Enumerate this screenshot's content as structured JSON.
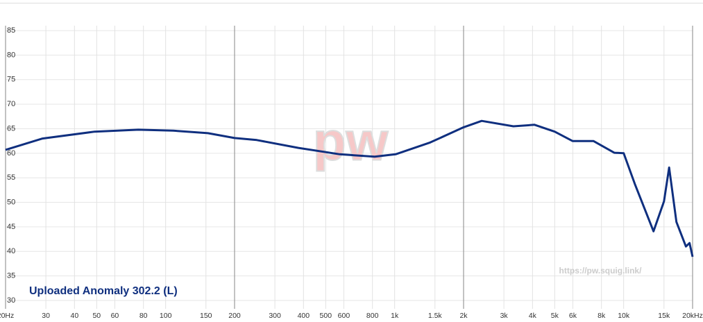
{
  "chart_data": {
    "type": "line",
    "xscale": "log",
    "logo": "pw",
    "watermark": "https://pw.squig.link/",
    "xlim": [
      20,
      20000
    ],
    "ylim": [
      28.3,
      86
    ],
    "xticks": [
      {
        "value": 20,
        "label": "20Hz"
      },
      30,
      40,
      50,
      60,
      80,
      100,
      150,
      200,
      300,
      400,
      500,
      600,
      800,
      {
        "value": 1000,
        "label": "1k"
      },
      {
        "value": 1500,
        "label": "1.5k"
      },
      {
        "value": 2000,
        "label": "2k"
      },
      {
        "value": 3000,
        "label": "3k"
      },
      {
        "value": 4000,
        "label": "4k"
      },
      {
        "value": 5000,
        "label": "5k"
      },
      {
        "value": 6000,
        "label": "6k"
      },
      {
        "value": 8000,
        "label": "8k"
      },
      {
        "value": 10000,
        "label": "10k"
      },
      {
        "value": 15000,
        "label": "15k"
      },
      {
        "value": 20000,
        "label": "20kHz"
      }
    ],
    "yticks": [
      30,
      35,
      40,
      45,
      50,
      55,
      60,
      65,
      70,
      75,
      80,
      85
    ],
    "grid": true,
    "series": [
      {
        "name": "Uploaded Anomaly 302.2 (L)",
        "color": "#0f2f7f",
        "x": [
          20,
          29,
          49,
          76,
          108,
          153,
          200,
          250,
          380,
          576,
          818,
          1010,
          1430,
          2000,
          2400,
          3300,
          4080,
          5000,
          5980,
          7380,
          9100,
          10000,
          11200,
          13500,
          15000,
          15800,
          17000,
          18700,
          19400,
          20000
        ],
        "values": [
          60.7,
          63,
          64.4,
          64.8,
          64.6,
          64.1,
          63.1,
          62.7,
          61.1,
          59.8,
          59.3,
          59.8,
          62.2,
          65.3,
          66.6,
          65.5,
          65.8,
          64.4,
          62.5,
          62.5,
          60.1,
          60,
          53.7,
          44.1,
          50.2,
          57.1,
          46,
          41,
          41.7,
          38.9
        ]
      }
    ]
  }
}
